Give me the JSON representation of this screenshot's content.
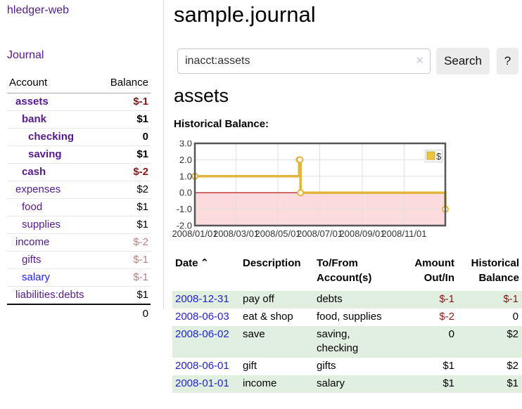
{
  "palette": {
    "link_purple": "#551a8b",
    "link_blue": "#2222dd",
    "negative_strong": "#8b1515",
    "negative_soft": "#b98080",
    "stripe_green": "#e1efe0",
    "chart_line_gold": "#e3b53c",
    "chart_negative_region": "#fbdbdb",
    "chart_zero_line": "#b00000"
  },
  "sidebar": {
    "app_title": "hledger-web",
    "nav_journal": "Journal",
    "accounts_table": {
      "header_account": "Account",
      "header_balance": "Balance",
      "rows": [
        {
          "name": "assets",
          "level": 1,
          "bold": true,
          "balance": "$-1"
        },
        {
          "name": "bank",
          "level": 2,
          "bold": true,
          "balance": "$1"
        },
        {
          "name": "checking",
          "level": 3,
          "bold": true,
          "balance": "0"
        },
        {
          "name": "saving",
          "level": 3,
          "bold": true,
          "balance": "$1"
        },
        {
          "name": "cash",
          "level": 2,
          "bold": true,
          "balance": "$-2"
        },
        {
          "name": "expenses",
          "level": 1,
          "bold": false,
          "balance": "$2"
        },
        {
          "name": "food",
          "level": 2,
          "bold": false,
          "balance": "$1"
        },
        {
          "name": "supplies",
          "level": 2,
          "bold": false,
          "balance": "$1"
        },
        {
          "name": "income",
          "level": 1,
          "bold": false,
          "balance": "$-2"
        },
        {
          "name": "gifts",
          "level": 2,
          "bold": false,
          "balance": "$-1"
        },
        {
          "name": "salary",
          "level": 2,
          "bold": false,
          "balance": "$-1",
          "blue": true
        },
        {
          "name": "liabilities:debts",
          "level": 1,
          "bold": false,
          "balance": "$1"
        }
      ],
      "total": "0"
    }
  },
  "main": {
    "title": "sample.journal",
    "search": {
      "value": "inacct:assets",
      "clear_icon": "✕",
      "button": "Search",
      "help": "?"
    },
    "account_heading": "assets",
    "chart_label": "Historical Balance:"
  },
  "chart_data": {
    "type": "line",
    "step": true,
    "title": "Historical Balance",
    "series": [
      {
        "name": "$",
        "points": [
          [
            "2008-01-01",
            1
          ],
          [
            "2008-06-01",
            2
          ],
          [
            "2008-06-02",
            2
          ],
          [
            "2008-06-03",
            0
          ],
          [
            "2008-12-31",
            -1
          ]
        ]
      }
    ],
    "xrange": [
      "2008-01-01",
      "2008-12-31"
    ],
    "ylim": [
      -2,
      3
    ],
    "yticks": [
      "3.0",
      "2.0",
      "1.0",
      "0.0",
      "-1.0",
      "-2.0"
    ],
    "xticks": [
      "2008/01/01",
      "2008/03/01",
      "2008/05/01",
      "2008/07/01",
      "2008/09/01",
      "2008/11/01"
    ],
    "grid": true,
    "legend": {
      "label": "$",
      "position": "top-right"
    }
  },
  "register": {
    "headers": [
      {
        "label": "Date",
        "sort_icon": "⌃"
      },
      {
        "label": "Description"
      },
      {
        "label": "To/From Account(s)"
      },
      {
        "label": "Amount Out/In"
      },
      {
        "label": "Historical Balance"
      }
    ],
    "rows": [
      {
        "date": "2008-12-31",
        "description": "pay off",
        "accounts": "debts",
        "amount": "$-1",
        "balance": "$-1"
      },
      {
        "date": "2008-06-03",
        "description": "eat & shop",
        "accounts": "food, supplies",
        "amount": "$-2",
        "balance": "0"
      },
      {
        "date": "2008-06-02",
        "description": "save",
        "accounts": "saving, checking",
        "amount": "0",
        "balance": "$2"
      },
      {
        "date": "2008-06-01",
        "description": "gift",
        "accounts": "gifts",
        "amount": "$1",
        "balance": "$2"
      },
      {
        "date": "2008-01-01",
        "description": "income",
        "accounts": "salary",
        "amount": "$1",
        "balance": "$1"
      }
    ]
  }
}
